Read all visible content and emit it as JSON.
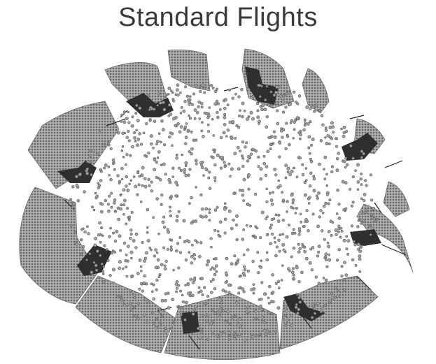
{
  "title": "Standard Flights",
  "colors": {
    "background": "#ffffff",
    "dot": "#9a9a9a",
    "dot_outline": "#5e5e5e",
    "wedge_fill": "#909090",
    "wedge_edge": "#555555",
    "gate_dark": "#333333",
    "title": "#3a3a3a"
  },
  "diagram": {
    "description_type": "radial-airport-dot-map",
    "gate_clusters": 12
  }
}
